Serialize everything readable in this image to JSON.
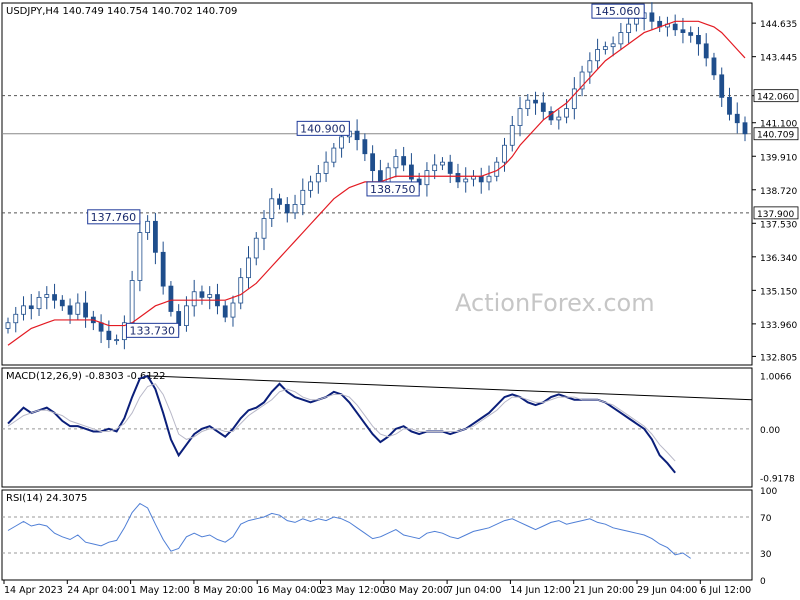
{
  "watermark": "ActionForex.com",
  "colors": {
    "background": "#ffffff",
    "grid_line": "#cccccc",
    "candle": "#1f4e8c",
    "sma": "#e31b23",
    "macd_line": "#0b1f7a",
    "macd_signal": "#b8b8c8",
    "rsi_line": "#4f7fd6",
    "label_box_border": "#1f3a9a",
    "watermark": "#c6c6c6"
  },
  "chart_data": [
    {
      "type": "candlestick",
      "header": {
        "symbol": "USDJPY,H4",
        "open": "140.749",
        "high": "140.754",
        "low": "140.702",
        "close": "140.709"
      },
      "ylim": [
        132.5,
        145.35
      ],
      "y_ticks": [
        "144.635",
        "143.445",
        "142.060",
        "141.100",
        "139.910",
        "138.720",
        "137.530",
        "136.340",
        "135.150",
        "133.960",
        "132.805"
      ],
      "x_labels": [
        "14 Apr 2023",
        "24 Apr 04:00",
        "1 May 12:00",
        "8 May 20:00",
        "16 May 04:00",
        "23 May 12:00",
        "30 May 20:00",
        "7 Jun 04:00",
        "14 Jun 12:00",
        "21 Jun 20:00",
        "29 Jun 04:00",
        "6 Jul 12:00"
      ],
      "horizontal_levels": [
        {
          "value": 142.06,
          "label": "142.060",
          "style": "dashed"
        },
        {
          "value": 140.709,
          "label": "140.709",
          "style": "solid"
        },
        {
          "value": 137.9,
          "label": "137.900",
          "style": "dashed"
        }
      ],
      "annotations": [
        {
          "text": "145.060",
          "price": 145.06,
          "index": 82
        },
        {
          "text": "140.900",
          "price": 140.9,
          "index": 44
        },
        {
          "text": "137.760",
          "price": 137.76,
          "index": 17
        },
        {
          "text": "138.750",
          "price": 138.75,
          "index": 53
        },
        {
          "text": "133.730",
          "price": 133.73,
          "index": 22
        }
      ],
      "closes": [
        134.0,
        134.3,
        134.6,
        134.5,
        134.9,
        135.0,
        134.8,
        134.6,
        134.3,
        134.7,
        134.2,
        134.0,
        133.7,
        133.4,
        133.4,
        134.0,
        135.5,
        137.2,
        137.6,
        136.5,
        135.3,
        134.4,
        133.9,
        134.6,
        135.1,
        134.9,
        135.0,
        134.6,
        134.2,
        134.7,
        135.6,
        136.3,
        137.0,
        137.7,
        138.4,
        138.2,
        137.9,
        138.2,
        138.7,
        139.0,
        139.3,
        139.7,
        140.2,
        140.6,
        140.8,
        140.5,
        140.0,
        139.4,
        139.0,
        139.5,
        139.9,
        139.6,
        139.1,
        138.9,
        139.4,
        139.6,
        139.7,
        139.3,
        139.0,
        139.1,
        139.2,
        139.0,
        139.2,
        139.7,
        140.3,
        141.0,
        141.6,
        141.9,
        141.8,
        141.5,
        141.2,
        141.3,
        141.6,
        142.3,
        142.9,
        143.3,
        143.7,
        143.8,
        143.9,
        144.3,
        144.6,
        144.8,
        145.0,
        144.7,
        144.5,
        144.6,
        144.4,
        144.3,
        144.2,
        143.9,
        143.4,
        142.8,
        142.0,
        141.4,
        141.1,
        140.709
      ],
      "sma_closes": [
        133.2,
        133.4,
        133.6,
        133.8,
        133.9,
        134.0,
        134.1,
        134.1,
        134.1,
        134.1,
        134.1,
        134.1,
        134.0,
        133.9,
        133.9,
        133.9,
        134.0,
        134.2,
        134.4,
        134.6,
        134.7,
        134.8,
        134.8,
        134.8,
        134.8,
        134.8,
        134.8,
        134.8,
        134.8,
        134.9,
        135.0,
        135.2,
        135.4,
        135.7,
        136.0,
        136.3,
        136.6,
        136.9,
        137.2,
        137.5,
        137.8,
        138.1,
        138.4,
        138.6,
        138.8,
        138.9,
        139.0,
        139.0,
        139.0,
        139.1,
        139.2,
        139.2,
        139.2,
        139.2,
        139.2,
        139.2,
        139.2,
        139.2,
        139.2,
        139.2,
        139.2,
        139.2,
        139.3,
        139.4,
        139.6,
        139.9,
        140.3,
        140.6,
        140.9,
        141.2,
        141.4,
        141.6,
        141.8,
        142.1,
        142.4,
        142.7,
        143.0,
        143.3,
        143.5,
        143.7,
        143.9,
        144.1,
        144.3,
        144.4,
        144.5,
        144.6,
        144.7,
        144.7,
        144.7,
        144.7,
        144.6,
        144.5,
        144.3,
        144.0,
        143.7,
        143.4
      ]
    },
    {
      "type": "line",
      "title": "MACD(12,26,9) -0.8303 -0.6122",
      "ylim": [
        -1.1,
        1.15
      ],
      "y_ticks": [
        "1.0066",
        "0.00",
        "-0.9178"
      ],
      "series": [
        {
          "name": "MACD",
          "values": [
            0.1,
            0.25,
            0.4,
            0.3,
            0.35,
            0.4,
            0.3,
            0.15,
            0.05,
            0.05,
            0.0,
            -0.05,
            -0.05,
            0.0,
            -0.05,
            0.2,
            0.6,
            0.95,
            1.0,
            0.75,
            0.3,
            -0.2,
            -0.5,
            -0.3,
            -0.1,
            0.0,
            0.05,
            -0.05,
            -0.15,
            0.0,
            0.2,
            0.35,
            0.4,
            0.5,
            0.7,
            0.85,
            0.7,
            0.6,
            0.55,
            0.5,
            0.55,
            0.6,
            0.7,
            0.65,
            0.5,
            0.3,
            0.1,
            -0.1,
            -0.25,
            -0.15,
            0.0,
            0.05,
            -0.05,
            -0.1,
            -0.05,
            -0.05,
            -0.05,
            -0.1,
            -0.05,
            0.0,
            0.1,
            0.2,
            0.3,
            0.45,
            0.6,
            0.65,
            0.6,
            0.5,
            0.45,
            0.5,
            0.6,
            0.65,
            0.6,
            0.55,
            0.55,
            0.55,
            0.55,
            0.5,
            0.4,
            0.3,
            0.2,
            0.1,
            0.0,
            -0.2,
            -0.5,
            -0.65,
            -0.83
          ]
        },
        {
          "name": "Signal",
          "values": [
            0.05,
            0.15,
            0.25,
            0.3,
            0.35,
            0.35,
            0.3,
            0.25,
            0.15,
            0.1,
            0.05,
            0.0,
            -0.05,
            -0.05,
            0.0,
            0.1,
            0.3,
            0.6,
            0.8,
            0.85,
            0.65,
            0.3,
            -0.1,
            -0.2,
            -0.15,
            -0.05,
            0.0,
            0.0,
            -0.05,
            -0.05,
            0.1,
            0.25,
            0.35,
            0.45,
            0.55,
            0.7,
            0.75,
            0.7,
            0.6,
            0.55,
            0.55,
            0.6,
            0.65,
            0.65,
            0.6,
            0.45,
            0.25,
            0.05,
            -0.1,
            -0.15,
            -0.1,
            0.0,
            0.0,
            -0.05,
            -0.05,
            -0.05,
            -0.05,
            -0.05,
            -0.05,
            0.0,
            0.05,
            0.15,
            0.25,
            0.35,
            0.5,
            0.6,
            0.6,
            0.55,
            0.5,
            0.5,
            0.55,
            0.6,
            0.6,
            0.6,
            0.55,
            0.55,
            0.55,
            0.5,
            0.45,
            0.35,
            0.25,
            0.15,
            0.05,
            -0.1,
            -0.3,
            -0.45,
            -0.61
          ]
        }
      ],
      "trendline": {
        "from": {
          "index": 18,
          "value": 1.0
        },
        "to": {
          "index": 95,
          "value": 0.55
        }
      }
    },
    {
      "type": "line",
      "title": "RSI(14) 24.3075",
      "ylim": [
        0,
        100
      ],
      "y_ticks": [
        "100",
        "70",
        "30",
        "0"
      ],
      "levels": [
        70,
        30
      ],
      "series": [
        {
          "name": "RSI",
          "values": [
            55,
            60,
            65,
            60,
            62,
            60,
            52,
            48,
            45,
            50,
            42,
            40,
            38,
            42,
            44,
            58,
            75,
            85,
            80,
            62,
            45,
            32,
            35,
            48,
            52,
            48,
            50,
            45,
            42,
            48,
            62,
            66,
            68,
            70,
            74,
            72,
            66,
            64,
            68,
            65,
            68,
            66,
            70,
            68,
            64,
            58,
            52,
            46,
            48,
            52,
            56,
            50,
            48,
            46,
            52,
            54,
            52,
            48,
            46,
            50,
            54,
            56,
            58,
            62,
            66,
            68,
            64,
            60,
            56,
            60,
            64,
            66,
            62,
            64,
            66,
            68,
            64,
            62,
            58,
            56,
            54,
            52,
            50,
            46,
            40,
            36,
            28,
            30,
            24
          ]
        }
      ]
    }
  ]
}
